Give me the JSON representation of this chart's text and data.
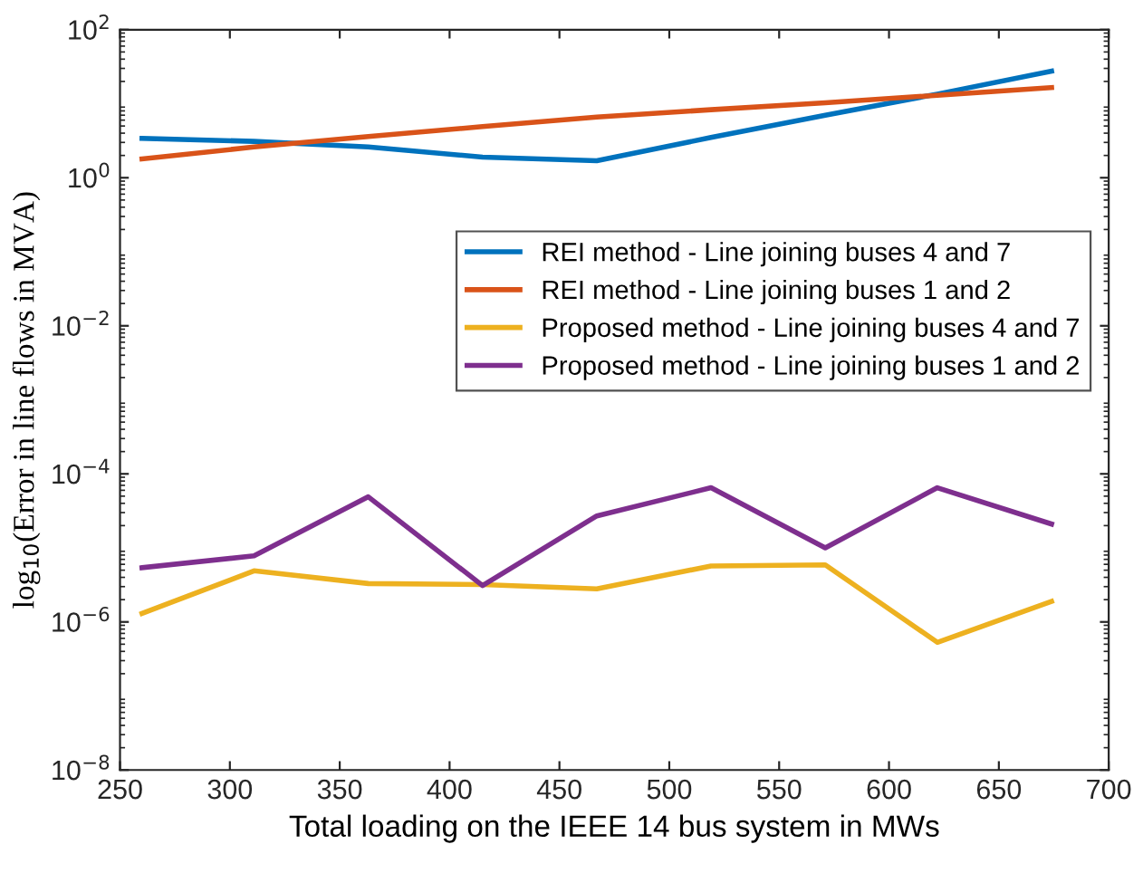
{
  "chart_data": {
    "type": "line",
    "xlabel": "Total loading on the IEEE 14 bus system in MWs",
    "ylabel": "log$_{10}$(Error in line flows in MVA)",
    "x": [
      260,
      311,
      363,
      415,
      467,
      519,
      571,
      622,
      674
    ],
    "series": [
      {
        "name": "REI method - Line joining buses 4 and 7",
        "color": "#0072bd",
        "values": [
          3.4,
          3.1,
          2.6,
          1.9,
          1.7,
          3.5,
          7,
          13.5,
          27.5
        ]
      },
      {
        "name": "REI method - Line joining buses 1 and 2",
        "color": "#d95319",
        "values": [
          1.8,
          2.6,
          3.6,
          4.9,
          6.6,
          8.3,
          10.3,
          13,
          16.5
        ]
      },
      {
        "name": "Proposed method - Line joining buses 4 and 7",
        "color": "#edb120",
        "values": [
          1.3e-06,
          4.9e-06,
          3.3e-06,
          3.2e-06,
          2.8e-06,
          5.7e-06,
          5.9e-06,
          5.3e-07,
          1.9e-06
        ]
      },
      {
        "name": "Proposed method - Line joining buses 1 and 2",
        "color": "#7e2f8e",
        "values": [
          5.4e-06,
          7.8e-06,
          4.9e-05,
          3.1e-06,
          2.7e-05,
          6.5e-05,
          1e-05,
          6.5e-05,
          2.1e-05
        ]
      }
    ],
    "log": "y",
    "xlim": [
      250,
      700
    ],
    "ylim": [
      1e-08,
      100
    ],
    "xticks": [
      250,
      300,
      350,
      400,
      450,
      500,
      550,
      600,
      650,
      700
    ],
    "yticks": [
      {
        "value": 1e-08,
        "label": "10$^{−8}$"
      },
      {
        "value": 1e-06,
        "label": "10$^{−6}$"
      },
      {
        "value": 0.0001,
        "label": "10$^{−4}$"
      },
      {
        "value": 0.01,
        "label": "10$^{−2}$"
      },
      {
        "value": 1,
        "label": "10$^{0}$"
      },
      {
        "value": 100,
        "label": "10$^{2}$"
      }
    ],
    "legend": "right",
    "grid": false,
    "marker": "none",
    "line_style": "solid"
  }
}
